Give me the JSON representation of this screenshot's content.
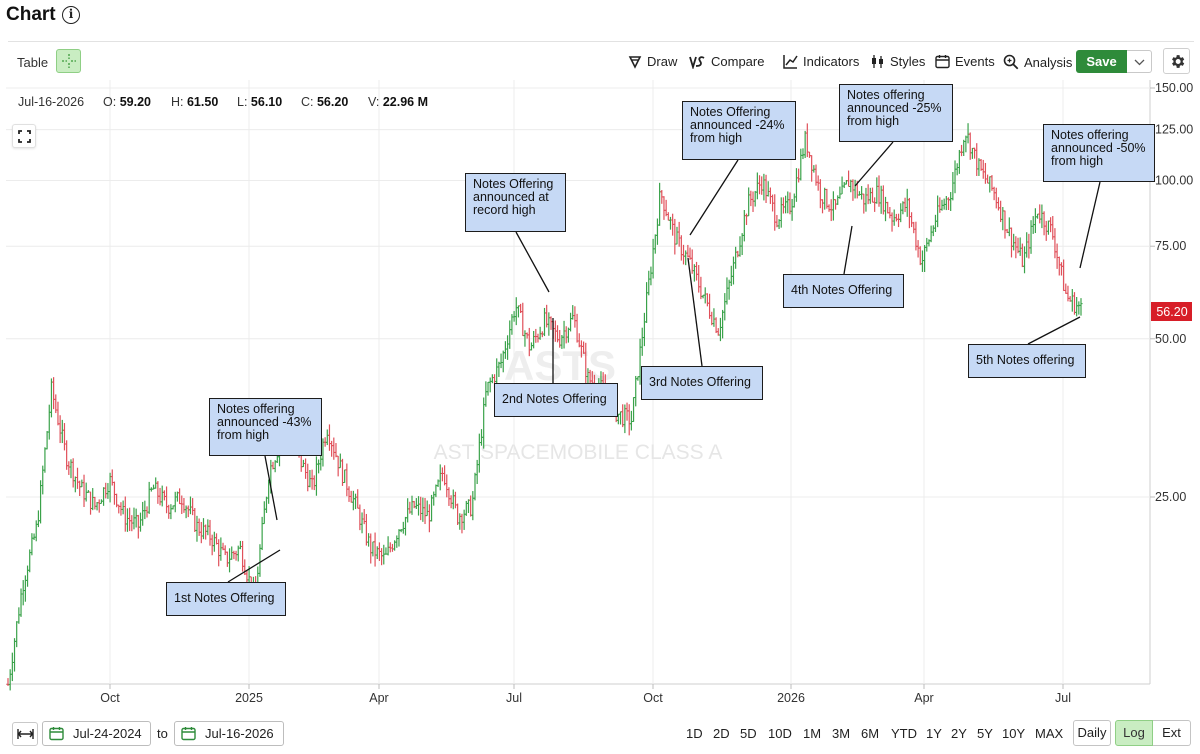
{
  "header": {
    "title": "Chart",
    "info_icon": "info-icon"
  },
  "toolbar": {
    "table_label": "Table",
    "draw_label": "Draw",
    "compare_label": "Compare",
    "indicators_label": "Indicators",
    "styles_label": "Styles",
    "events_label": "Events",
    "analysis_label": "Analysis",
    "save_label": "Save"
  },
  "ohlc": {
    "date": "Jul-16-2026",
    "open_label": "O:",
    "open": "59.20",
    "high_label": "H:",
    "high": "61.50",
    "low_label": "L:",
    "low": "56.10",
    "close_label": "C:",
    "close": "56.20",
    "volume_label": "V:",
    "volume": "22.96 M"
  },
  "watermark": {
    "ticker": "ASTS",
    "name": "AST SPACEMOBILE CLASS A"
  },
  "annotations": {
    "note1": "1st Notes Offering",
    "note1_callout": "Notes offering announced -43% from high",
    "note2": "2nd Notes Offering",
    "note2_callout": "Notes Offering announced at record high",
    "note3": "3rd Notes Offering",
    "note3_callout": "Notes Offering announced -24% from high",
    "note4": "4th Notes Offering",
    "note4_callout": "Notes offering announced -25% from high",
    "note5": "5th Notes offering",
    "note5_callout": "Notes offering announced -50% from high"
  },
  "footer": {
    "from_date": "Jul-24-2024",
    "to_label": "to",
    "to_date": "Jul-16-2026",
    "timeframes": [
      "1D",
      "2D",
      "5D",
      "10D",
      "1M",
      "3M",
      "6M",
      "YTD",
      "1Y",
      "2Y",
      "5Y",
      "10Y",
      "MAX"
    ],
    "daily_label": "Daily",
    "log_label": "Log",
    "ext_label": "Ext"
  },
  "colors": {
    "up": "#3aa24a",
    "down": "#e0505a",
    "accent": "#2e8b3a",
    "note_bg": "#c6d9f5",
    "price_tag": "#d71e28"
  },
  "chart_data": {
    "type": "line",
    "scale": "log",
    "ylim": [
      8,
      155
    ],
    "y_ticks": [
      "150.00",
      "125.00",
      "100.00",
      "75.00",
      "50.00",
      "25.00"
    ],
    "x_ticks": [
      "Oct",
      "2025",
      "Apr",
      "Jul",
      "Oct",
      "2026",
      "Apr",
      "Jul"
    ],
    "last_price": "56.20",
    "series": [
      {
        "values": [
          11,
          17,
          22,
          40,
          30,
          26,
          24,
          27,
          23,
          22,
          26,
          24,
          25,
          22,
          21,
          19,
          20,
          16,
          28,
          33,
          30,
          26,
          34,
          28,
          24,
          20,
          19,
          22,
          24,
          23,
          28,
          23,
          24,
          40,
          45,
          58,
          48,
          54,
          50,
          55,
          42,
          40,
          36,
          35,
          58,
          95,
          78,
          70,
          60,
          52,
          68,
          90,
          100,
          85,
          90,
          120,
          95,
          88,
          100,
          92,
          95,
          85,
          90,
          70,
          85,
          95,
          125,
          105,
          95,
          80,
          70,
          88,
          80,
          60,
          57
        ]
      }
    ]
  }
}
